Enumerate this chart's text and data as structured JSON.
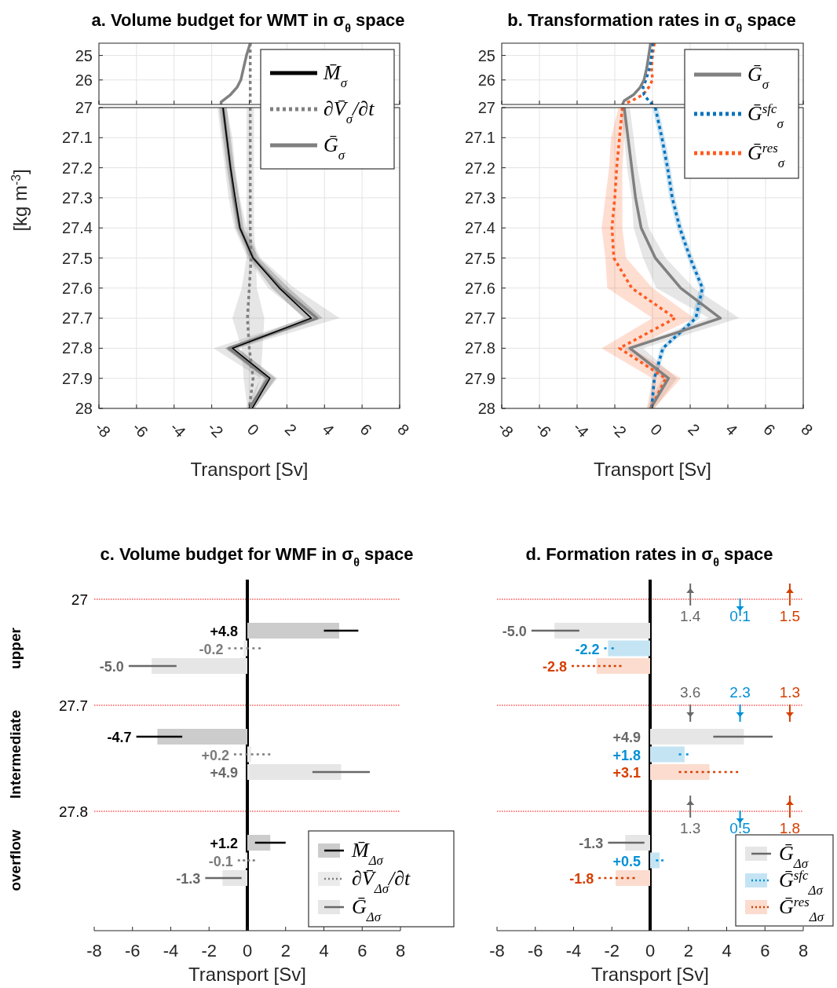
{
  "chart_data": [
    {
      "type": "line",
      "orientation": "horizontal",
      "title": "a. Volume budget for WMT in σ$_{θ}$ space",
      "xlim": [
        -8,
        8
      ],
      "xticks": [
        -8,
        -6,
        -4,
        -2,
        0,
        2,
        4,
        6,
        8
      ],
      "ylim": [
        27,
        24.5
      ],
      "yticks": [
        25,
        26
      ],
      "tick_labels": "y",
      "grid": true,
      "series": [
        {
          "color": "#808080",
          "line_style": "dotted",
          "x": [
            24.5,
            25,
            25.5,
            26,
            26.3,
            26.6,
            26.9,
            27
          ],
          "values": [
            0.05,
            0.05,
            0.05,
            0.05,
            0.05,
            0.05,
            0.05,
            0.05
          ]
        },
        {
          "color": "#808080",
          "line_style": "solid",
          "x": [
            24.5,
            25,
            25.5,
            26,
            26.3,
            26.6,
            26.9,
            27
          ],
          "values": [
            0.05,
            -0.15,
            -0.3,
            -0.45,
            -0.65,
            -1.0,
            -1.5,
            -1.5
          ]
        }
      ]
    },
    {
      "type": "line",
      "orientation": "horizontal",
      "xlabel": "Transport [Sv]",
      "ylabel": "[kg m$^{-3}$]",
      "xlim": [
        -8,
        8
      ],
      "xticks": [
        -8,
        -6,
        -4,
        -2,
        0,
        2,
        4,
        6,
        8
      ],
      "ylim": [
        28,
        27
      ],
      "yticks": [
        27,
        27.1,
        27.2,
        27.3,
        27.4,
        27.5,
        27.6,
        27.7,
        27.8,
        27.9,
        28
      ],
      "grid": true,
      "legend": "top right",
      "series": [
        {
          "name": "M̄$_{σ}$",
          "color": "#000000",
          "line_style": "solid",
          "x": [
            27,
            27.1,
            27.2,
            27.3,
            27.4,
            27.5,
            27.6,
            27.7,
            27.8,
            27.9,
            28
          ],
          "values": [
            -1.4,
            -1.2,
            -1.0,
            -0.75,
            -0.5,
            0.2,
            1.6,
            3.3,
            -0.9,
            1.1,
            0.15
          ],
          "lower": [
            -1.6,
            -1.4,
            -1.2,
            -0.95,
            -0.7,
            0.0,
            1.2,
            2.9,
            -1.3,
            0.8,
            0.0
          ],
          "upper": [
            -1.2,
            -1.0,
            -0.8,
            -0.55,
            -0.3,
            0.5,
            2.1,
            3.9,
            -0.6,
            1.4,
            0.3
          ]
        },
        {
          "name": "∂V̄$_{σ}$/∂t",
          "color": "#808080",
          "line_style": "dotted",
          "x": [
            27,
            27.1,
            27.2,
            27.3,
            27.4,
            27.5,
            27.6,
            27.7,
            27.8,
            27.9,
            28
          ],
          "values": [
            0.05,
            0.05,
            0.05,
            0.05,
            0.05,
            0.1,
            0.0,
            -0.1,
            0.0,
            0.2,
            0.0
          ],
          "lower": [
            -0.15,
            -0.15,
            -0.15,
            -0.15,
            -0.15,
            -0.15,
            -0.4,
            -0.9,
            -0.4,
            -0.3,
            -0.1
          ],
          "upper": [
            0.25,
            0.25,
            0.25,
            0.25,
            0.25,
            0.35,
            0.4,
            0.8,
            0.7,
            0.6,
            0.1
          ]
        },
        {
          "name": "Ḡ$_{σ}$",
          "color": "#808080",
          "line_style": "solid",
          "x": [
            27,
            27.1,
            27.2,
            27.3,
            27.4,
            27.5,
            27.6,
            27.7,
            27.8,
            27.9,
            28
          ],
          "values": [
            -1.4,
            -1.2,
            -1.0,
            -0.8,
            -0.5,
            0.2,
            1.7,
            3.6,
            -1.1,
            1.0,
            0.0
          ],
          "lower": [
            -1.7,
            -1.5,
            -1.3,
            -1.1,
            -0.8,
            -0.1,
            1.0,
            3.0,
            -1.9,
            0.6,
            -0.2
          ],
          "upper": [
            -1.2,
            -0.9,
            -0.75,
            -0.5,
            -0.15,
            0.6,
            2.4,
            4.8,
            -0.6,
            1.5,
            0.2
          ]
        }
      ]
    },
    {
      "type": "line",
      "orientation": "horizontal",
      "title": "b. Transformation rates in σ$_{θ}$ space",
      "xlim": [
        -8,
        8
      ],
      "xticks": [
        -8,
        -6,
        -4,
        -2,
        0,
        2,
        4,
        6,
        8
      ],
      "ylim": [
        27,
        24.5
      ],
      "yticks": [
        25,
        26
      ],
      "tick_labels": "y",
      "grid": true,
      "series": [
        {
          "color": "#808080",
          "line_style": "solid",
          "x": [
            24.5,
            25,
            25.5,
            26,
            26.3,
            26.6,
            26.85,
            27
          ],
          "values": [
            -0.1,
            -0.2,
            -0.3,
            -0.45,
            -0.65,
            -1.0,
            -1.5,
            -1.6
          ]
        },
        {
          "color": "#0072bd",
          "line_style": "dotted",
          "x": [
            24.5,
            25,
            25.5,
            26,
            26.3,
            26.6,
            26.85,
            27
          ],
          "values": [
            0.0,
            -0.05,
            -0.15,
            -0.35,
            -0.5,
            -0.45,
            -0.2,
            0.0
          ]
        },
        {
          "color": "#ff5a1f",
          "line_style": "dotted",
          "x": [
            24.5,
            25,
            25.5,
            26,
            26.3,
            26.6,
            26.85,
            27
          ],
          "values": [
            0.1,
            0.0,
            -0.05,
            0.0,
            -0.2,
            -0.5,
            -1.1,
            -1.6
          ]
        }
      ]
    },
    {
      "type": "line",
      "orientation": "horizontal",
      "xlabel": "Transport [Sv]",
      "xlim": [
        -8,
        8
      ],
      "xticks": [
        -8,
        -6,
        -4,
        -2,
        0,
        2,
        4,
        6,
        8
      ],
      "ylim": [
        28,
        27
      ],
      "yticks": [
        27,
        27.1,
        27.2,
        27.3,
        27.4,
        27.5,
        27.6,
        27.7,
        27.8,
        27.9,
        28
      ],
      "grid": true,
      "legend": "top right",
      "series": [
        {
          "name": "Ḡ$_{σ}$",
          "color": "#808080",
          "line_style": "solid",
          "x": [
            27,
            27.1,
            27.2,
            27.3,
            27.4,
            27.5,
            27.6,
            27.7,
            27.8,
            27.9,
            28
          ],
          "values": [
            -1.5,
            -1.3,
            -1.1,
            -0.9,
            -0.6,
            0.15,
            1.5,
            3.6,
            -1.2,
            0.85,
            -0.1
          ],
          "lower": [
            -1.7,
            -1.5,
            -1.35,
            -1.1,
            -1.0,
            -0.5,
            0.2,
            3.0,
            -1.5,
            0.5,
            -0.3
          ],
          "upper": [
            -1.2,
            -1.0,
            -0.8,
            -0.5,
            -0.2,
            0.7,
            2.2,
            4.6,
            -0.5,
            1.3,
            0.1
          ]
        },
        {
          "name": "Ḡ$^{sfc}$$_{σ}$",
          "color": "#0072bd",
          "line_style": "dotted",
          "x": [
            27,
            27.1,
            27.2,
            27.3,
            27.4,
            27.5,
            27.6,
            27.7,
            27.8,
            27.9,
            28
          ],
          "values": [
            0.15,
            0.5,
            0.8,
            1.05,
            1.45,
            2.0,
            2.65,
            2.3,
            0.55,
            0.1,
            -0.05
          ],
          "lower": [
            0.0,
            0.35,
            0.65,
            0.9,
            1.3,
            1.85,
            2.5,
            2.1,
            0.4,
            0.0,
            -0.15
          ],
          "upper": [
            0.3,
            0.65,
            0.95,
            1.2,
            1.6,
            2.15,
            2.8,
            2.5,
            0.7,
            0.2,
            0.05
          ]
        },
        {
          "name": "Ḡ$^{res}$$_{σ}$",
          "color": "#ff5a1f",
          "line_style": "dotted",
          "x": [
            27,
            27.1,
            27.2,
            27.3,
            27.4,
            27.5,
            27.6,
            27.7,
            27.8,
            27.9,
            28
          ],
          "values": [
            -1.6,
            -1.75,
            -1.9,
            -2.0,
            -2.15,
            -2.05,
            -1.1,
            1.2,
            -1.75,
            0.7,
            -0.1
          ],
          "lower": [
            -1.8,
            -2.2,
            -2.3,
            -2.5,
            -2.7,
            -2.5,
            -2.4,
            0.0,
            -2.7,
            0.0,
            -0.3
          ],
          "upper": [
            -1.4,
            -1.5,
            -1.6,
            -1.6,
            -1.6,
            -1.4,
            0.0,
            2.2,
            -1.1,
            1.5,
            0.1
          ]
        }
      ]
    },
    {
      "type": "bar",
      "orientation": "horizontal",
      "title": "c. Volume budget for WMF in σ$_{θ}$ space",
      "xlabel": "Transport [Sv]",
      "categories": [
        "upper",
        "Intermediate",
        "overflow"
      ],
      "xlim": [
        -8,
        8
      ],
      "xticks": [
        -8,
        -6,
        -4,
        -2,
        0,
        2,
        4,
        6,
        8
      ],
      "legend": "bottom right",
      "annotations": [
        "27",
        "27.7",
        "27.8"
      ],
      "ref_lines": [
        {
          "axis": "x",
          "value": 0,
          "color": "#000000"
        }
      ],
      "series": [
        {
          "name": "M̄$_{Δσ}$",
          "color": "#cccccc",
          "line_style": "solid",
          "values": [
            4.8,
            -4.7,
            1.2
          ],
          "errors": [
            [
              4.0,
              5.8
            ],
            [
              -5.8,
              -3.4
            ],
            [
              0.4,
              2.0
            ]
          ],
          "value_labels": [
            "+4.8",
            "-4.7",
            "+1.2"
          ]
        },
        {
          "name": "∂V̄$_{Δσ}$/∂t",
          "color": "#ebebeb",
          "line_style": "dotted",
          "values": [
            -0.2,
            0.2,
            -0.1
          ],
          "errors": [
            [
              -1.0,
              0.7
            ],
            [
              -0.7,
              1.2
            ],
            [
              -0.5,
              0.4
            ]
          ],
          "value_labels": [
            "-0.2",
            "+0.2",
            "-0.1"
          ]
        },
        {
          "name": "Ḡ$_{Δσ}$",
          "color": "#e6e6e6",
          "line_style": "solid",
          "values": [
            -5.0,
            4.9,
            -1.3
          ],
          "errors": [
            [
              -6.2,
              -3.7
            ],
            [
              3.4,
              6.4
            ],
            [
              -2.2,
              -0.3
            ]
          ],
          "value_labels": [
            "-5.0",
            "+4.9",
            "-1.3"
          ]
        }
      ]
    },
    {
      "type": "bar",
      "orientation": "horizontal",
      "title": "d. Formation rates in σ$_{θ}$ space",
      "xlabel": "Transport [Sv]",
      "categories": [
        null,
        null,
        null
      ],
      "tick_labels": "x",
      "xlim": [
        -8,
        8
      ],
      "xticks": [
        -8,
        -6,
        -4,
        -2,
        0,
        2,
        4,
        6,
        8
      ],
      "legend": "bottom right",
      "annotations": [
        "1.4",
        "0.1",
        "1.5",
        "3.6",
        "2.3",
        "1.3",
        "1.3",
        "0.5",
        "1.8"
      ],
      "ref_lines": [
        {
          "axis": "x",
          "value": 0,
          "color": "#000000"
        }
      ],
      "series": [
        {
          "name": "Ḡ$_{Δσ}$",
          "color": "#e6e6e6",
          "line_style": "solid",
          "values": [
            -5.0,
            4.9,
            -1.3
          ],
          "errors": [
            [
              -6.2,
              -3.7
            ],
            [
              3.3,
              6.4
            ],
            [
              -2.2,
              -0.3
            ]
          ],
          "value_labels": [
            "-5.0",
            "+4.9",
            "-1.3"
          ]
        },
        {
          "name": "Ḡ$^{sfc}$$_{Δσ}$",
          "color": "#c5e4f3",
          "line_style": "dotted",
          "values": [
            -2.2,
            1.8,
            0.5
          ],
          "errors": [
            [
              -2.4,
              -1.9
            ],
            [
              1.5,
              2.0
            ],
            [
              0.3,
              0.7
            ]
          ],
          "value_labels": [
            "-2.2",
            "+1.8",
            "+0.5"
          ]
        },
        {
          "name": "Ḡ$^{res}$$_{Δσ}$",
          "color": "#fbdccf",
          "line_style": "dotted",
          "values": [
            -2.8,
            3.1,
            -1.8
          ],
          "errors": [
            [
              -4.1,
              -1.5
            ],
            [
              1.5,
              4.6
            ],
            [
              -2.7,
              -0.8
            ]
          ],
          "value_labels": [
            "-2.8",
            "+3.1",
            "-1.8"
          ]
        }
      ]
    }
  ]
}
